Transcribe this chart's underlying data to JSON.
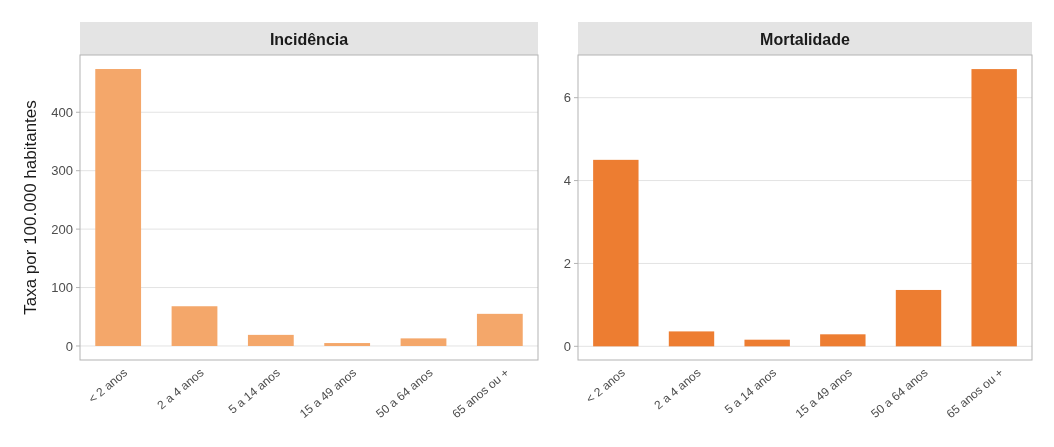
{
  "chart_data": [
    {
      "type": "bar",
      "title": "Incidência",
      "ylabel": "Taxa por 100.000 habitantes",
      "categories": [
        "< 2 anos",
        "2 a 4 anos",
        "5 a 14 anos",
        "15 a 49 anos",
        "50 a 64 anos",
        "65 anos ou +"
      ],
      "values": [
        474,
        68,
        19,
        5,
        13,
        55
      ],
      "color": "#f4a76a",
      "ylim": [
        -24,
        498
      ],
      "yticks": [
        0,
        100,
        200,
        300,
        400
      ],
      "grid": "y"
    },
    {
      "type": "bar",
      "title": "Mortalidade",
      "categories": [
        "< 2 anos",
        "2 a 4 anos",
        "5 a 14 anos",
        "15 a 49 anos",
        "50 a 64 anos",
        "65 anos ou +"
      ],
      "values": [
        4.5,
        0.36,
        0.16,
        0.29,
        1.36,
        6.69
      ],
      "color": "#ed7d31",
      "ylim": [
        -0.33,
        7.03
      ],
      "yticks": [
        0,
        2,
        4,
        6
      ],
      "grid": "y"
    }
  ]
}
